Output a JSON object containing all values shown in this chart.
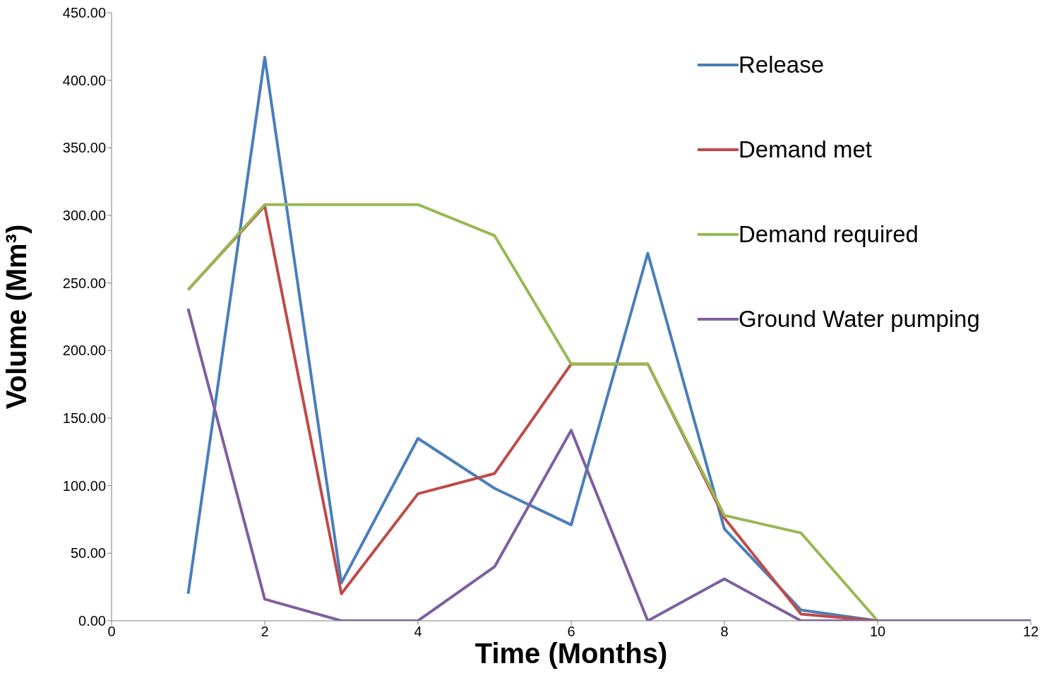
{
  "chart_data": {
    "type": "line",
    "xlabel": "Time (Months)",
    "ylabel": "Volume (Mm³)",
    "x": [
      1,
      2,
      3,
      4,
      5,
      6,
      7,
      8,
      9,
      10,
      11,
      12
    ],
    "series": [
      {
        "name": "Release",
        "color": "#4a7ebb",
        "values": [
          20,
          417,
          28,
          135,
          98,
          71,
          272,
          68,
          8,
          0,
          0,
          0
        ]
      },
      {
        "name": "Demand met",
        "color": "#be4b48",
        "values": [
          245,
          307,
          20,
          94,
          109,
          190,
          190,
          76,
          5,
          0,
          0,
          0
        ]
      },
      {
        "name": "Demand required",
        "color": "#98b954",
        "values": [
          245,
          308,
          308,
          308,
          285,
          190,
          190,
          78,
          65,
          0,
          0,
          0
        ]
      },
      {
        "name": "Ground Water pumping",
        "color": "#7d60a0",
        "values": [
          231,
          16,
          0,
          0,
          40,
          141,
          0,
          31,
          0,
          0,
          0,
          0
        ]
      }
    ],
    "xlim": [
      0,
      12
    ],
    "xticks": [
      0,
      2,
      4,
      6,
      8,
      10,
      12
    ],
    "ylim": [
      0,
      450
    ],
    "yticks": [
      {
        "value": 0,
        "label": "0.00"
      },
      {
        "value": 50,
        "label": "50.00"
      },
      {
        "value": 100,
        "label": "100.00"
      },
      {
        "value": 150,
        "label": "150.00"
      },
      {
        "value": 200,
        "label": "200.00"
      },
      {
        "value": 250,
        "label": "250.00"
      },
      {
        "value": 300,
        "label": "300.00"
      },
      {
        "value": 350,
        "label": "350.00"
      },
      {
        "value": 400,
        "label": "400.00"
      },
      {
        "value": 450,
        "label": "450.00"
      }
    ],
    "grid": false,
    "legend": "top right",
    "marker": "none",
    "line_style": "solid"
  }
}
